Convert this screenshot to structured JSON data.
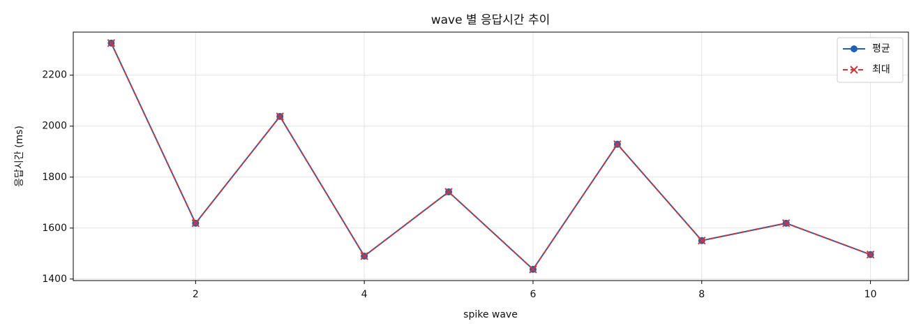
{
  "chart_data": {
    "type": "line",
    "title": "wave 별 응답시간 추이",
    "xlabel": "spike wave",
    "ylabel": "응답시간 (ms)",
    "x": [
      1,
      2,
      3,
      4,
      5,
      6,
      7,
      8,
      9,
      10
    ],
    "series": [
      {
        "name": "평균",
        "color": "#1f62b4",
        "marker": "o",
        "linestyle": "solid",
        "values": [
          2326,
          1619,
          2038,
          1490,
          1742,
          1438,
          1929,
          1551,
          1619,
          1496
        ]
      },
      {
        "name": "최대",
        "color": "#d0353a",
        "marker": "x",
        "linestyle": "dashed",
        "values": [
          2326,
          1619,
          2038,
          1490,
          1742,
          1438,
          1929,
          1551,
          1619,
          1496
        ]
      }
    ],
    "xlim": [
      0.55,
      10.45
    ],
    "ylim": [
      1394,
      2369
    ],
    "xticks": [
      2,
      4,
      6,
      8,
      10
    ],
    "yticks": [
      1400,
      1600,
      1800,
      2000,
      2200
    ],
    "grid": true,
    "legend": "upper right"
  }
}
